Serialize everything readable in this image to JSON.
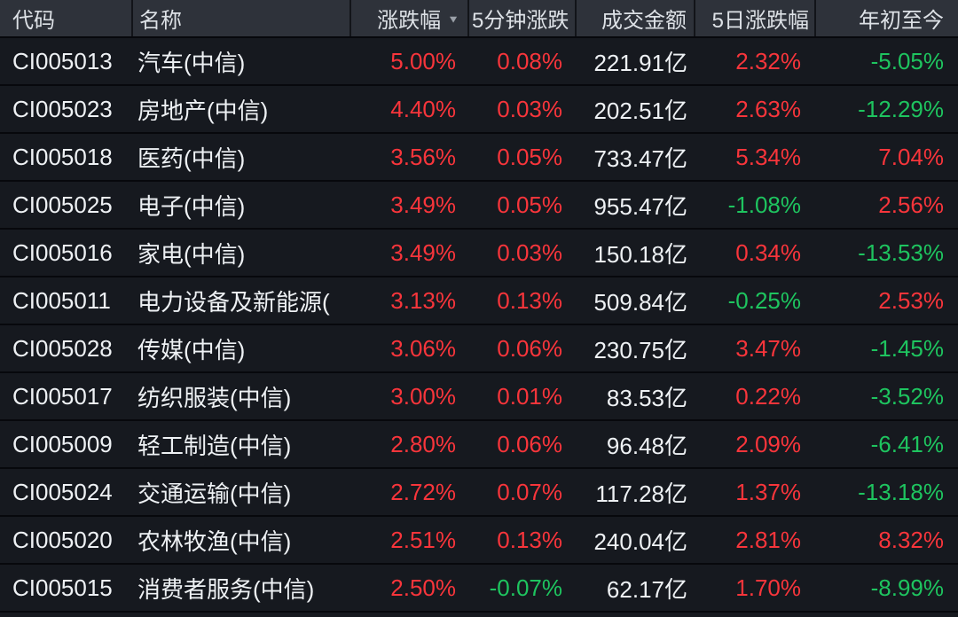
{
  "colors": {
    "bg": "#16191f",
    "header-bg": "#2e323a",
    "divider": "#121419",
    "row-sep": "#07080c",
    "text": "#eef1f4",
    "header-text": "#dde1e6",
    "pos": "#f8353b",
    "neg": "#1ec45f",
    "icon": "#9aa0a8"
  },
  "icons": {
    "sort_desc": "▼"
  },
  "table": {
    "columns": [
      {
        "label": "代码"
      },
      {
        "label": "名称"
      },
      {
        "label": "涨跌幅",
        "sorted": "desc"
      },
      {
        "label": "5分钟涨跌"
      },
      {
        "label": "成交金额"
      },
      {
        "label": "5日涨跌幅"
      },
      {
        "label": "年初至今"
      }
    ],
    "rows": [
      {
        "code": "CI005013",
        "name": "汽车(中信)",
        "chg": "5.00%",
        "chg5m": "0.08%",
        "turnover": "221.91亿",
        "chg5d": "2.32%",
        "ytd": "-5.05%"
      },
      {
        "code": "CI005023",
        "name": "房地产(中信)",
        "chg": "4.40%",
        "chg5m": "0.03%",
        "turnover": "202.51亿",
        "chg5d": "2.63%",
        "ytd": "-12.29%"
      },
      {
        "code": "CI005018",
        "name": "医药(中信)",
        "chg": "3.56%",
        "chg5m": "0.05%",
        "turnover": "733.47亿",
        "chg5d": "5.34%",
        "ytd": "7.04%"
      },
      {
        "code": "CI005025",
        "name": "电子(中信)",
        "chg": "3.49%",
        "chg5m": "0.05%",
        "turnover": "955.47亿",
        "chg5d": "-1.08%",
        "ytd": "2.56%"
      },
      {
        "code": "CI005016",
        "name": "家电(中信)",
        "chg": "3.49%",
        "chg5m": "0.03%",
        "turnover": "150.18亿",
        "chg5d": "0.34%",
        "ytd": "-13.53%"
      },
      {
        "code": "CI005011",
        "name": "电力设备及新能源(",
        "chg": "3.13%",
        "chg5m": "0.13%",
        "turnover": "509.84亿",
        "chg5d": "-0.25%",
        "ytd": "2.53%"
      },
      {
        "code": "CI005028",
        "name": "传媒(中信)",
        "chg": "3.06%",
        "chg5m": "0.06%",
        "turnover": "230.75亿",
        "chg5d": "3.47%",
        "ytd": "-1.45%"
      },
      {
        "code": "CI005017",
        "name": "纺织服装(中信)",
        "chg": "3.00%",
        "chg5m": "0.01%",
        "turnover": "83.53亿",
        "chg5d": "0.22%",
        "ytd": "-3.52%"
      },
      {
        "code": "CI005009",
        "name": "轻工制造(中信)",
        "chg": "2.80%",
        "chg5m": "0.06%",
        "turnover": "96.48亿",
        "chg5d": "2.09%",
        "ytd": "-6.41%"
      },
      {
        "code": "CI005024",
        "name": "交通运输(中信)",
        "chg": "2.72%",
        "chg5m": "0.07%",
        "turnover": "117.28亿",
        "chg5d": "1.37%",
        "ytd": "-13.18%"
      },
      {
        "code": "CI005020",
        "name": "农林牧渔(中信)",
        "chg": "2.51%",
        "chg5m": "0.13%",
        "turnover": "240.04亿",
        "chg5d": "2.81%",
        "ytd": "8.32%"
      },
      {
        "code": "CI005015",
        "name": "消费者服务(中信)",
        "chg": "2.50%",
        "chg5m": "-0.07%",
        "turnover": "62.17亿",
        "chg5d": "1.70%",
        "ytd": "-8.99%"
      }
    ]
  }
}
